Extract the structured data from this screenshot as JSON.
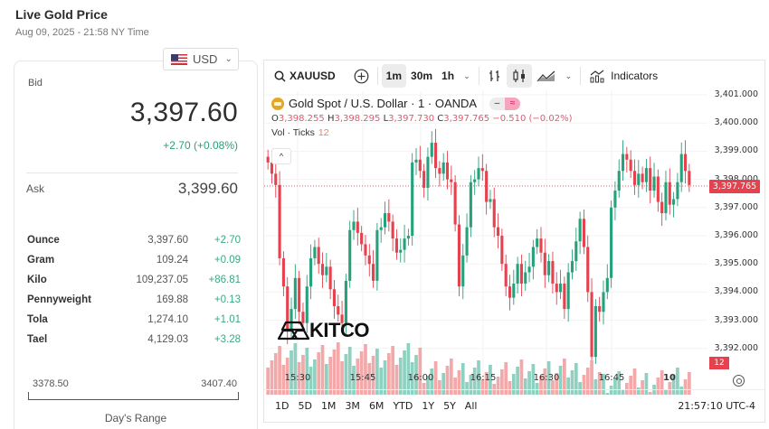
{
  "header": {
    "title": "Live Gold Price",
    "timestamp": "Aug 09, 2025 - 21:58 NY Time"
  },
  "currency_selector": {
    "value": "USD",
    "icon": "us-flag-icon"
  },
  "quote": {
    "bid_label": "Bid",
    "bid": "3,397.60",
    "change": "+2.70 (+0.08%)",
    "ask_label": "Ask",
    "ask": "3,399.60",
    "change_color": "#2aa07d"
  },
  "units": [
    {
      "name": "Ounce",
      "price": "3,397.60",
      "change": "+2.70"
    },
    {
      "name": "Gram",
      "price": "109.24",
      "change": "+0.09"
    },
    {
      "name": "Kilo",
      "price": "109,237.05",
      "change": "+86.81"
    },
    {
      "name": "Pennyweight",
      "price": "169.88",
      "change": "+0.13"
    },
    {
      "name": "Tola",
      "price": "1,274.10",
      "change": "+1.01"
    },
    {
      "name": "Tael",
      "price": "4,129.03",
      "change": "+3.28"
    }
  ],
  "days_range": {
    "low": "3378.50",
    "high": "3407.40",
    "label": "Day's Range"
  },
  "chart": {
    "toolbar": {
      "symbol": "XAUUSD",
      "intervals": [
        "1m",
        "30m",
        "1h"
      ],
      "active_interval": "1m",
      "indicators_label": "Indicators"
    },
    "legend": {
      "title": "Gold Spot / U.S. Dollar · 1 · OANDA",
      "o_label": "O",
      "o": "3,398.255",
      "h_label": "H",
      "h": "3,398.295",
      "l_label": "L",
      "l": "3,397.730",
      "c_label": "C",
      "c": "3,397.765",
      "chg": "−0.510 (−0.02%)",
      "vol_label": "Vol · Ticks",
      "vol_value": "12"
    },
    "y_ticks": [
      "3,401.000",
      "3,400.000",
      "3,399.000",
      "3,398.000",
      "3,397.000",
      "3,396.000",
      "3,395.000",
      "3,394.000",
      "3,393.000",
      "3,392.000"
    ],
    "last_price": "3,397.765",
    "last_volume": "12",
    "x_ticks": [
      "15:30",
      "15:45",
      "16:00",
      "16:15",
      "16:30",
      "16:45",
      "10"
    ],
    "watermark": "KITCO",
    "ranges": [
      "1D",
      "5D",
      "1M",
      "3M",
      "6M",
      "YTD",
      "1Y",
      "5Y",
      "All"
    ],
    "clock": "21:57:10 UTC-4",
    "up_color": "#26a17b",
    "down_color": "#e5414f"
  }
}
